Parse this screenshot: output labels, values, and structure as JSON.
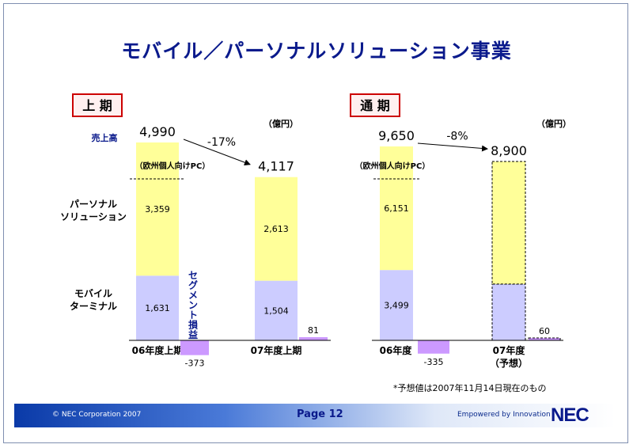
{
  "title": "モバイル／パーソナルソリューション事業",
  "note": "*予想値は2007年11月14日現在のもの",
  "footer": {
    "copyright": "© NEC Corporation 2007",
    "page": "Page 12",
    "slogan": "Empowered by Innovation",
    "logo": "NEC"
  },
  "colors": {
    "title": "#0a1a8c",
    "personal": "#ffff99",
    "mobile": "#ccccff",
    "segment": "#cc99ff",
    "box_border": "#cc0000",
    "box_fill": "#fff0f0"
  },
  "chart_data": [
    {
      "type": "bar",
      "panel_label": "上 期",
      "unit": "（億円）",
      "sales_label": "売上高",
      "europe_label": "（欧州個人向けPC）",
      "segment_label": "セグメント損益",
      "row_labels": [
        "パーソナル\nソリューション",
        "モバイル\nターミナル"
      ],
      "categories": [
        "06年度上期",
        "07年度上期"
      ],
      "series": [
        {
          "name": "モバイル ターミナル",
          "values": [
            1631,
            1504
          ]
        },
        {
          "name": "パーソナル ソリューション",
          "values": [
            3359,
            2613
          ]
        }
      ],
      "totals": [
        4990,
        4117
      ],
      "totals_text": [
        "4,990",
        "4,117"
      ],
      "stack_labels": {
        "personal": [
          "3,359",
          "2,613"
        ],
        "mobile": [
          "1,631",
          "1,504"
        ]
      },
      "segment_profit": [
        -373,
        81
      ],
      "segment_text": [
        "-373",
        "81"
      ],
      "change": "-17%",
      "forecast": [
        false,
        false
      ]
    },
    {
      "type": "bar",
      "panel_label": "通 期",
      "unit": "（億円）",
      "europe_label": "（欧州個人向けPC）",
      "categories": [
        "06年度",
        "07年度\n（予想）"
      ],
      "series": [
        {
          "name": "モバイル ターミナル",
          "values": [
            3499,
            2800
          ]
        },
        {
          "name": "パーソナル ソリューション",
          "values": [
            6151,
            6100
          ]
        }
      ],
      "totals": [
        9650,
        8900
      ],
      "totals_text": [
        "9,650",
        "8,900"
      ],
      "stack_labels": {
        "personal": [
          "6,151",
          ""
        ],
        "mobile": [
          "3,499",
          ""
        ]
      },
      "segment_profit": [
        -335,
        60
      ],
      "segment_text": [
        "-335",
        "60"
      ],
      "change": "-8%",
      "forecast": [
        false,
        true
      ]
    }
  ]
}
